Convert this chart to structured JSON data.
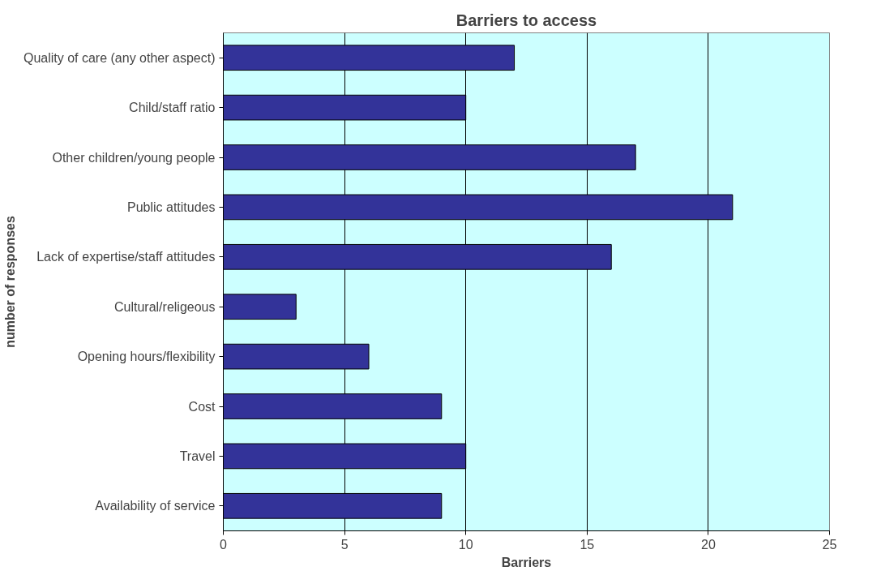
{
  "chart_data": {
    "type": "bar",
    "orientation": "horizontal",
    "title": "Barriers to access",
    "xlabel": "Barriers",
    "ylabel": "number of responses",
    "categories": [
      "Quality of care (any other aspect)",
      "Child/staff ratio",
      "Other children/young people",
      "Public attitudes",
      "Lack of expertise/staff attitudes",
      "Cultural/religeous",
      "Opening hours/flexibility",
      "Cost",
      "Travel",
      "Availability of service"
    ],
    "values": [
      12,
      10,
      17,
      21,
      16,
      3,
      6,
      9,
      10,
      9
    ],
    "color": "#333399",
    "xlim": [
      0,
      25
    ],
    "xticks": [
      0,
      5,
      10,
      15,
      20,
      25
    ],
    "grid": "x"
  }
}
